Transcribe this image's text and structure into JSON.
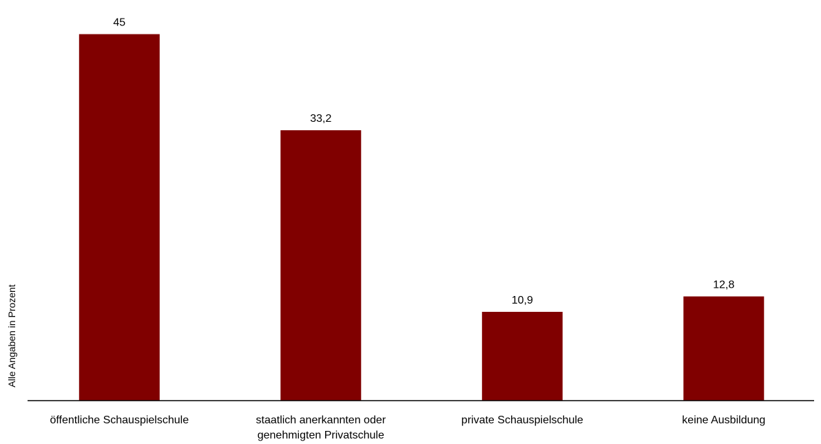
{
  "chart_data": {
    "type": "bar",
    "categories": [
      [
        "öffentliche Schauspielschule"
      ],
      [
        "staatlich anerkannten oder",
        "genehmigten Privatschule"
      ],
      [
        "private Schauspielschule"
      ],
      [
        "keine Ausbildung"
      ]
    ],
    "values": [
      45,
      33.2,
      10.9,
      12.8
    ],
    "value_labels": [
      "45",
      "33,2",
      "10,9",
      "12,8"
    ],
    "ylabel": "Alle Angaben in Prozent",
    "xlabel": "",
    "title": "",
    "ylim": [
      0,
      47.5
    ],
    "grid": false,
    "legend": "none",
    "colors": {
      "bar": "#800000",
      "axis": "#000000"
    }
  }
}
